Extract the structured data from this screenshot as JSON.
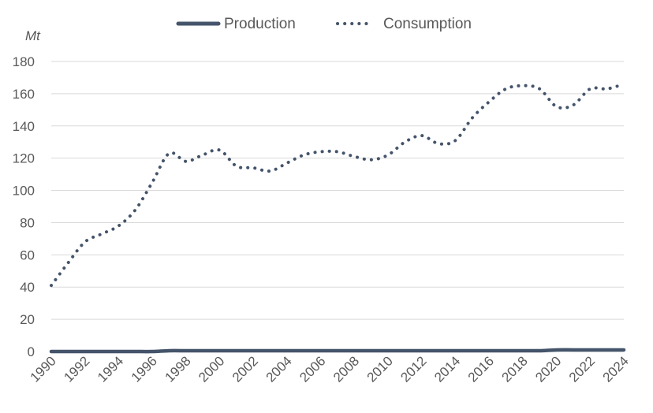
{
  "chart_data": {
    "type": "line",
    "unit_label": "Mt",
    "x": [
      "1990",
      "1991",
      "1992",
      "1993",
      "1994",
      "1995",
      "1996",
      "1997",
      "1998",
      "1999",
      "2000",
      "2001",
      "2002",
      "2003",
      "2004",
      "2005",
      "2006",
      "2007",
      "2008",
      "2009",
      "2010",
      "2011",
      "2012",
      "2013",
      "2014",
      "2015",
      "2016",
      "2017",
      "2018",
      "2019",
      "2020",
      "2021",
      "2022",
      "2023",
      "2024"
    ],
    "x_tick_labels": [
      "1990",
      "1992",
      "1994",
      "1996",
      "1998",
      "2000",
      "2002",
      "2004",
      "2006",
      "2008",
      "2010",
      "2012",
      "2014",
      "2016",
      "2018",
      "2020",
      "2022",
      "2024"
    ],
    "ylim": [
      0,
      180
    ],
    "y_ticks": [
      "0",
      "20",
      "40",
      "60",
      "80",
      "100",
      "120",
      "140",
      "160",
      "180"
    ],
    "grid": true,
    "legend_position": "top-center",
    "series": [
      {
        "name": "Production",
        "style": "solid",
        "color": "#44546a",
        "values": [
          0,
          0,
          0,
          0,
          0,
          0,
          0,
          0.5,
          0.5,
          0.5,
          0.5,
          0.5,
          0.5,
          0.5,
          0.5,
          0.5,
          0.5,
          0.5,
          0.5,
          0.5,
          0.5,
          0.5,
          0.5,
          0.5,
          0.5,
          0.5,
          0.5,
          0.5,
          0.5,
          0.5,
          1,
          1,
          1,
          1,
          1
        ]
      },
      {
        "name": "Consumption",
        "style": "dotted",
        "color": "#44546a",
        "values": [
          41,
          55,
          68,
          73,
          78,
          88,
          105,
          123,
          118,
          122,
          125,
          115,
          114,
          112,
          117,
          122,
          124,
          124,
          121,
          119,
          122,
          130,
          134,
          129,
          131,
          145,
          155,
          163,
          165,
          163,
          152,
          153,
          163,
          163,
          166
        ]
      }
    ]
  }
}
